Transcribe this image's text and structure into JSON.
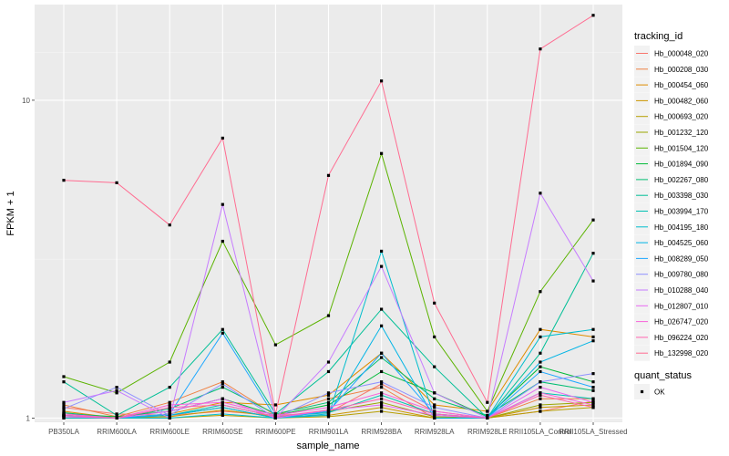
{
  "chart_data": {
    "type": "line",
    "xlabel": "sample_name",
    "ylabel": "FPKM + 1",
    "y_scale": "log",
    "ylim": [
      0.97,
      20
    ],
    "yticks": [
      1,
      10
    ],
    "grid": true,
    "legend_position": "right",
    "legend_title": "tracking_id",
    "legend2_title": "quant_status",
    "legend2_items": [
      "OK"
    ],
    "categories": [
      "PB350LA",
      "RRIM600LA",
      "RRIM600LE",
      "RRIM600SE",
      "RRIM600PE",
      "RRIM901LA",
      "RRIM928BA",
      "RRIM928LA",
      "RRIM928LE",
      "RRII105LA_Control",
      "RRII105LA_Stressed"
    ],
    "series": [
      {
        "name": "Hb_000048_020",
        "color": "#F8766D",
        "values": [
          1.08,
          1.03,
          1.02,
          1.05,
          1.02,
          1.04,
          1.28,
          1.05,
          1.0,
          1.05,
          1.13
        ]
      },
      {
        "name": "Hb_000208_030",
        "color": "#EE8042",
        "values": [
          1.1,
          1.01,
          1.12,
          1.3,
          1.02,
          1.15,
          1.25,
          1.0,
          1.0,
          1.15,
          1.15
        ]
      },
      {
        "name": "Hb_000454_060",
        "color": "#DE8C00",
        "values": [
          1.05,
          1.0,
          1.03,
          1.12,
          1.1,
          1.18,
          1.6,
          1.1,
          1.05,
          1.9,
          1.8
        ]
      },
      {
        "name": "Hb_000482_060",
        "color": "#CC9600",
        "values": [
          1.02,
          1.0,
          1.01,
          1.06,
          1.01,
          1.02,
          1.08,
          1.0,
          1.0,
          1.08,
          1.1
        ]
      },
      {
        "name": "Hb_000693_020",
        "color": "#B69E00",
        "values": [
          1.0,
          1.0,
          1.0,
          1.02,
          1.0,
          1.01,
          1.05,
          1.0,
          1.0,
          1.05,
          1.08
        ]
      },
      {
        "name": "Hb_001232_120",
        "color": "#9AA600",
        "values": [
          1.01,
          1.0,
          1.02,
          1.08,
          1.0,
          1.05,
          1.12,
          1.01,
          1.0,
          1.1,
          1.12
        ]
      },
      {
        "name": "Hb_001504_120",
        "color": "#5BB300",
        "values": [
          1.35,
          1.2,
          1.5,
          3.6,
          1.7,
          2.1,
          6.8,
          1.8,
          1.05,
          2.5,
          4.2
        ]
      },
      {
        "name": "Hb_001894_090",
        "color": "#00BA38",
        "values": [
          1.03,
          1.01,
          1.05,
          1.15,
          1.02,
          1.1,
          1.4,
          1.2,
          1.01,
          1.45,
          1.3
        ]
      },
      {
        "name": "Hb_002267_080",
        "color": "#00BE71",
        "values": [
          1.04,
          1.0,
          1.07,
          1.25,
          1.03,
          1.12,
          1.55,
          1.15,
          1.02,
          1.3,
          1.22
        ]
      },
      {
        "name": "Hb_003398_030",
        "color": "#00BF96",
        "values": [
          1.3,
          1.02,
          1.25,
          1.9,
          1.03,
          1.4,
          2.2,
          1.45,
          1.0,
          1.6,
          3.3
        ]
      },
      {
        "name": "Hb_003994_170",
        "color": "#00C0B2",
        "values": [
          1.02,
          1.0,
          1.02,
          1.1,
          1.01,
          1.04,
          1.18,
          1.03,
          1.0,
          1.2,
          1.15
        ]
      },
      {
        "name": "Hb_004195_180",
        "color": "#00BDCD",
        "values": [
          1.0,
          1.0,
          1.0,
          1.03,
          1.0,
          1.02,
          3.35,
          1.0,
          1.0,
          1.8,
          1.9
        ]
      },
      {
        "name": "Hb_004525_060",
        "color": "#00B4E5",
        "values": [
          1.01,
          1.0,
          1.02,
          1.08,
          1.0,
          1.03,
          1.95,
          1.0,
          1.0,
          1.5,
          1.75
        ]
      },
      {
        "name": "Hb_008289_050",
        "color": "#1FA8FF",
        "values": [
          1.02,
          1.0,
          1.03,
          1.85,
          1.0,
          1.05,
          1.6,
          1.03,
          1.0,
          1.4,
          1.25
        ]
      },
      {
        "name": "Hb_009780_080",
        "color": "#8F91FF",
        "values": [
          1.07,
          1.25,
          1.02,
          1.28,
          1.0,
          1.2,
          1.3,
          1.08,
          1.0,
          1.3,
          1.38
        ]
      },
      {
        "name": "Hb_010288_040",
        "color": "#C77CFF",
        "values": [
          1.12,
          1.22,
          1.0,
          4.7,
          1.0,
          1.5,
          3.0,
          1.2,
          1.0,
          5.1,
          2.7
        ]
      },
      {
        "name": "Hb_012807_010",
        "color": "#E769F1",
        "values": [
          1.01,
          1.0,
          1.05,
          1.15,
          1.0,
          1.06,
          1.1,
          1.02,
          1.0,
          1.25,
          1.12
        ]
      },
      {
        "name": "Hb_026747_020",
        "color": "#F863DA",
        "values": [
          1.03,
          1.0,
          1.1,
          1.12,
          1.02,
          1.08,
          1.2,
          1.05,
          1.0,
          1.2,
          1.1
        ]
      },
      {
        "name": "Hb_096224_020",
        "color": "#FF64B0",
        "values": [
          1.02,
          1.0,
          1.08,
          1.1,
          1.01,
          1.06,
          1.15,
          1.03,
          1.0,
          1.18,
          1.08
        ]
      },
      {
        "name": "Hb_132998_020",
        "color": "#FF6C91",
        "values": [
          5.6,
          5.5,
          4.05,
          7.6,
          1.03,
          5.8,
          11.5,
          2.3,
          1.12,
          14.5,
          18.5
        ]
      }
    ]
  }
}
